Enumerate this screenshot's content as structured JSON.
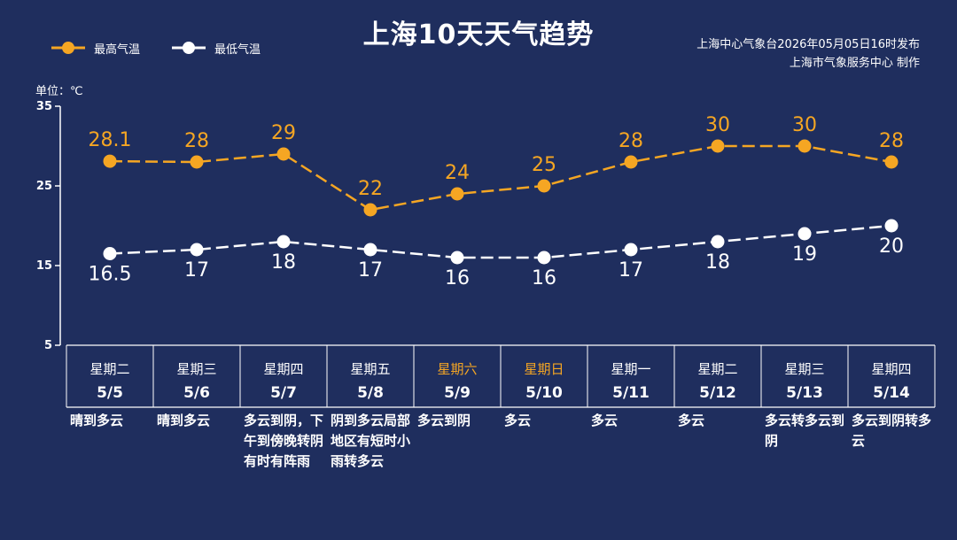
{
  "title": "上海10天天气趋势",
  "legend": {
    "high": "最高气温",
    "low": "最低气温"
  },
  "source": {
    "line1": "上海中心气象台2026年05月05日16时发布",
    "line2": "上海市气象服务中心 制作"
  },
  "unit": "单位：℃",
  "colors": {
    "background": "#1f2e5e",
    "high": "#f5a623",
    "low": "#ffffff",
    "weekend": "#f5a623"
  },
  "days": [
    {
      "weekday": "星期二",
      "date": "5/5",
      "weather": "晴到多云",
      "weekend": false
    },
    {
      "weekday": "星期三",
      "date": "5/6",
      "weather": "晴到多云",
      "weekend": false
    },
    {
      "weekday": "星期四",
      "date": "5/7",
      "weather": "多云到阴，下午到傍晚转阴有时有阵雨",
      "weekend": false
    },
    {
      "weekday": "星期五",
      "date": "5/8",
      "weather": "阴到多云局部地区有短时小雨转多云",
      "weekend": false
    },
    {
      "weekday": "星期六",
      "date": "5/9",
      "weather": "多云到阴",
      "weekend": true
    },
    {
      "weekday": "星期日",
      "date": "5/10",
      "weather": "多云",
      "weekend": true
    },
    {
      "weekday": "星期一",
      "date": "5/11",
      "weather": "多云",
      "weekend": false
    },
    {
      "weekday": "星期二",
      "date": "5/12",
      "weather": "多云",
      "weekend": false
    },
    {
      "weekday": "星期三",
      "date": "5/13",
      "weather": "多云转多云到阴",
      "weekend": false
    },
    {
      "weekday": "星期四",
      "date": "5/14",
      "weather": "多云到阴转多云",
      "weekend": false
    }
  ],
  "chart_data": {
    "type": "line",
    "categories": [
      "5/5",
      "5/6",
      "5/7",
      "5/8",
      "5/9",
      "5/10",
      "5/11",
      "5/12",
      "5/13",
      "5/14"
    ],
    "ylim": [
      5,
      35
    ],
    "yticks": [
      "35",
      "25",
      "15",
      "5"
    ],
    "grid": false,
    "legend_position": "top-left",
    "series": [
      {
        "name": "最高气温",
        "values": [
          28.1,
          28,
          29,
          22,
          24,
          25,
          28,
          30,
          30,
          28
        ],
        "labels": [
          "28.1",
          "28",
          "29",
          "22",
          "24",
          "25",
          "28",
          "30",
          "30",
          "28"
        ]
      },
      {
        "name": "最低气温",
        "values": [
          16.5,
          17,
          18,
          17,
          16,
          16,
          17,
          18,
          19,
          20
        ],
        "labels": [
          "16.5",
          "17",
          "18",
          "17",
          "16",
          "16",
          "17",
          "18",
          "19",
          "20"
        ]
      }
    ]
  }
}
